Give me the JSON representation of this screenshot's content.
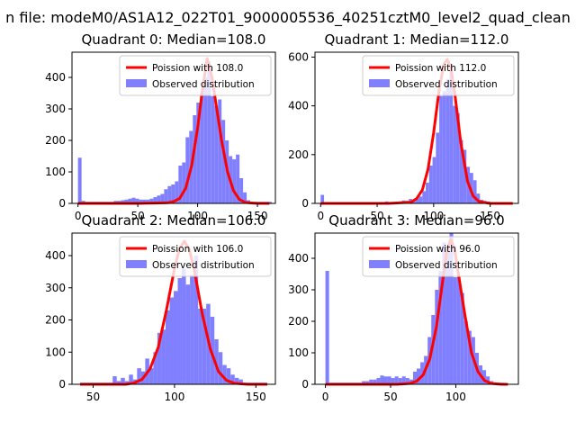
{
  "figure": {
    "suptitle": "n file: modeM0/AS1A12_022T01_9000005536_40251cztM0_level2_quad_clean",
    "background": "#ffffff"
  },
  "colors": {
    "histogram": "#8080ff",
    "poisson": "#ff0000",
    "poisson_peak": "#ff8080",
    "axes": "#000000"
  },
  "chart_data": [
    {
      "type": "bar",
      "subtype": "histogram_with_line",
      "title": "Quadrant 0: Median=108.0",
      "xlim": [
        -5,
        165
      ],
      "ylim": [
        0,
        480
      ],
      "xticks": [
        0,
        50,
        100,
        150
      ],
      "yticks": [
        0,
        100,
        200,
        300,
        400
      ],
      "legend": {
        "position": "top-right",
        "line_label": "Poission with 108.0",
        "bar_label": "Observed distribution"
      },
      "bin_width": 3,
      "histogram": {
        "bins_left": [
          0,
          3,
          6,
          9,
          12,
          15,
          18,
          21,
          24,
          27,
          30,
          33,
          36,
          39,
          42,
          45,
          48,
          51,
          54,
          57,
          60,
          63,
          66,
          69,
          72,
          75,
          78,
          81,
          84,
          87,
          90,
          93,
          96,
          99,
          102,
          105,
          108,
          111,
          114,
          117,
          120,
          123,
          126,
          129,
          132,
          135,
          138,
          141,
          144,
          147,
          150,
          153,
          156,
          159
        ],
        "counts": [
          145,
          8,
          5,
          5,
          5,
          5,
          5,
          5,
          5,
          5,
          8,
          8,
          10,
          12,
          15,
          18,
          15,
          12,
          12,
          12,
          15,
          20,
          25,
          30,
          45,
          55,
          60,
          70,
          120,
          130,
          210,
          230,
          280,
          320,
          350,
          400,
          450,
          340,
          310,
          330,
          265,
          200,
          150,
          140,
          155,
          80,
          35,
          10,
          5,
          5,
          5,
          5,
          5,
          5
        ]
      },
      "poisson": {
        "x": [
          0,
          50,
          75,
          80,
          85,
          90,
          95,
          100,
          104,
          108,
          112,
          116,
          120,
          125,
          130,
          135,
          140,
          150,
          160
        ],
        "y": [
          0,
          0,
          2,
          6,
          16,
          48,
          120,
          240,
          360,
          460,
          400,
          300,
          200,
          100,
          40,
          12,
          3,
          0,
          0
        ]
      }
    },
    {
      "type": "bar",
      "subtype": "histogram_with_line",
      "title": "Quadrant 1: Median=112.0",
      "xlim": [
        -5,
        175
      ],
      "ylim": [
        0,
        620
      ],
      "xticks": [
        0,
        50,
        100,
        150
      ],
      "yticks": [
        0,
        200,
        400,
        600
      ],
      "legend": {
        "position": "top-right",
        "line_label": "Poission with 112.0",
        "bar_label": "Observed distribution"
      },
      "bin_width": 3,
      "histogram": {
        "bins_left": [
          0,
          3,
          6,
          9,
          12,
          15,
          18,
          21,
          24,
          27,
          30,
          33,
          36,
          39,
          42,
          45,
          48,
          51,
          54,
          57,
          60,
          63,
          66,
          69,
          72,
          75,
          78,
          81,
          84,
          87,
          90,
          93,
          96,
          99,
          102,
          105,
          108,
          111,
          114,
          117,
          120,
          123,
          126,
          129,
          132,
          135,
          138,
          141,
          144,
          147,
          150,
          153,
          156,
          159,
          162,
          165
        ],
        "counts": [
          35,
          5,
          5,
          5,
          5,
          5,
          5,
          5,
          5,
          5,
          5,
          5,
          5,
          5,
          5,
          5,
          5,
          5,
          5,
          8,
          5,
          5,
          5,
          8,
          12,
          10,
          18,
          15,
          20,
          28,
          50,
          85,
          155,
          190,
          290,
          440,
          460,
          510,
          570,
          400,
          370,
          260,
          220,
          150,
          125,
          95,
          40,
          15,
          10,
          8,
          5,
          5,
          5,
          5,
          5,
          5
        ]
      },
      "poisson": {
        "x": [
          0,
          60,
          80,
          85,
          90,
          95,
          100,
          105,
          109,
          112,
          115,
          119,
          124,
          130,
          135,
          140,
          150,
          170
        ],
        "y": [
          0,
          0,
          5,
          20,
          55,
          140,
          290,
          470,
          570,
          590,
          560,
          440,
          250,
          90,
          30,
          8,
          0,
          0
        ]
      }
    },
    {
      "type": "bar",
      "subtype": "histogram_with_line",
      "title": "Quadrant 2: Median=106.0",
      "xlim": [
        37,
        162
      ],
      "ylim": [
        0,
        470
      ],
      "xticks": [
        50,
        100,
        150
      ],
      "yticks": [
        0,
        100,
        200,
        300,
        400
      ],
      "legend": {
        "position": "top-right",
        "line_label": "Poission with 106.0",
        "bar_label": "Observed distribution"
      },
      "bin_width": 2.5,
      "histogram": {
        "bins_left": [
          42,
          44.5,
          47,
          49.5,
          52,
          54.5,
          57,
          59.5,
          62,
          64.5,
          67,
          69.5,
          72,
          74.5,
          77,
          79.5,
          82,
          84.5,
          87,
          89.5,
          92,
          94.5,
          97,
          99.5,
          102,
          104.5,
          107,
          109.5,
          112,
          114.5,
          117,
          119.5,
          122,
          124.5,
          127,
          129.5,
          132,
          134.5,
          137,
          139.5,
          142,
          144.5,
          147,
          149.5,
          152,
          154.5
        ],
        "counts": [
          5,
          5,
          5,
          5,
          5,
          5,
          5,
          5,
          25,
          10,
          20,
          10,
          30,
          15,
          50,
          40,
          80,
          50,
          100,
          160,
          170,
          230,
          270,
          290,
          330,
          360,
          310,
          340,
          400,
          235,
          235,
          250,
          210,
          140,
          100,
          60,
          50,
          30,
          20,
          15,
          5,
          5,
          5,
          5,
          5,
          5
        ]
      },
      "poisson": {
        "x": [
          42,
          70,
          75,
          80,
          85,
          90,
          95,
          100,
          103,
          106,
          109,
          112,
          117,
          122,
          127,
          132,
          137,
          145,
          157
        ],
        "y": [
          0,
          0,
          4,
          15,
          48,
          115,
          230,
          360,
          420,
          445,
          420,
          360,
          220,
          110,
          40,
          12,
          3,
          0,
          0
        ]
      }
    },
    {
      "type": "bar",
      "subtype": "histogram_with_line",
      "title": "Quadrant 3: Median=96.0",
      "xlim": [
        -8,
        148
      ],
      "ylim": [
        0,
        480
      ],
      "xticks": [
        0,
        50,
        100
      ],
      "yticks": [
        0,
        100,
        200,
        300,
        400
      ],
      "legend": {
        "position": "top-right",
        "line_label": "Poission with 96.0",
        "bar_label": "Observed distribution"
      },
      "bin_width": 2.8,
      "histogram": {
        "bins_left": [
          0,
          2.8,
          5.6,
          8.4,
          11.2,
          14,
          16.8,
          19.6,
          22.4,
          25.2,
          28,
          30.8,
          33.6,
          36.4,
          39.2,
          42,
          44.8,
          47.6,
          50.4,
          53.2,
          56,
          58.8,
          61.6,
          64.4,
          67.2,
          70,
          72.8,
          75.6,
          78.4,
          81.2,
          84,
          86.8,
          89.6,
          92.4,
          95.2,
          98,
          100.8,
          103.6,
          106.4,
          109.2,
          112,
          114.8,
          117.6,
          120.4,
          123.2,
          126,
          128.8,
          131.6,
          134.4
        ],
        "counts": [
          360,
          5,
          5,
          5,
          5,
          5,
          5,
          5,
          5,
          5,
          10,
          10,
          15,
          15,
          20,
          28,
          25,
          25,
          20,
          25,
          20,
          25,
          20,
          15,
          40,
          50,
          70,
          90,
          150,
          220,
          300,
          360,
          450,
          420,
          480,
          340,
          340,
          290,
          200,
          170,
          150,
          100,
          60,
          45,
          25,
          10,
          5,
          5,
          5
        ]
      },
      "poisson": {
        "x": [
          0,
          55,
          65,
          70,
          75,
          80,
          85,
          90,
          93,
          96,
          99,
          102,
          107,
          112,
          117,
          122,
          127,
          135,
          140
        ],
        "y": [
          0,
          0,
          3,
          10,
          30,
          80,
          180,
          330,
          420,
          460,
          430,
          350,
          220,
          100,
          40,
          12,
          3,
          0,
          0
        ]
      }
    }
  ]
}
